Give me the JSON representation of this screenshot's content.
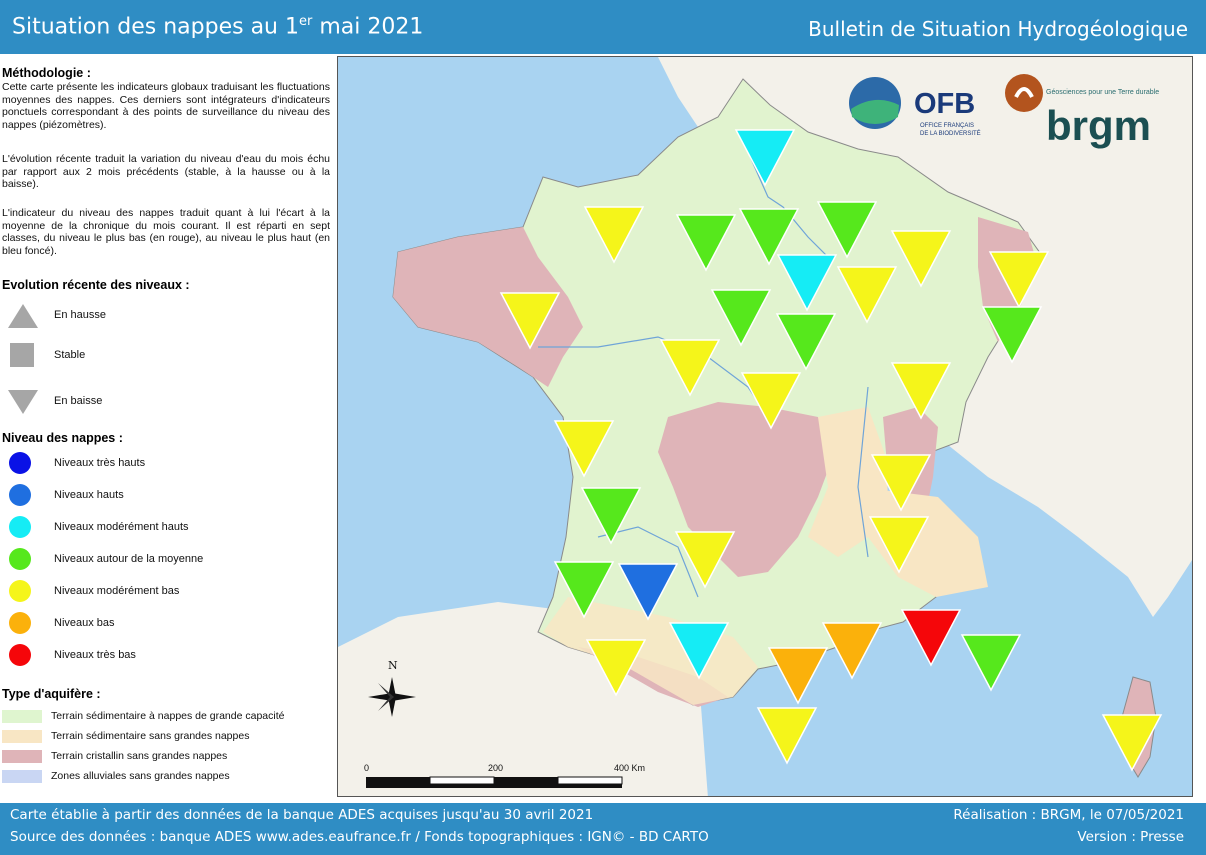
{
  "header": {
    "title_main": "Situation des nappes au 1",
    "title_sup": "er",
    "title_end": " mai 2021",
    "subtitle": "Bulletin de Situation Hydrogéologique"
  },
  "methodology": {
    "title": "Méthodologie :",
    "p1": "Cette carte présente les indicateurs globaux traduisant les fluctuations moyennes des nappes. Ces derniers sont intégrateurs d'indicateurs ponctuels correspondant à des points de surveillance du niveau des nappes (piézomètres).",
    "p2": "L'évolution récente traduit la variation du niveau d'eau du mois échu par rapport aux 2 mois précédents (stable, à la hausse ou à la baisse).",
    "p3": "L'indicateur du niveau des nappes traduit quant à lui l'écart à la moyenne de la chronique du mois courant. Il est réparti en sept classes, du niveau le plus bas (en rouge), au niveau le plus haut (en bleu foncé)."
  },
  "evolution": {
    "title": "Evolution récente des niveaux :",
    "items": [
      {
        "label": "En hausse",
        "shape": "up"
      },
      {
        "label": "Stable",
        "shape": "square"
      },
      {
        "label": "En baisse",
        "shape": "down"
      }
    ]
  },
  "levels": {
    "title": "Niveau des nappes :",
    "items": [
      {
        "label": "Niveaux très hauts",
        "color": "#0a12e6"
      },
      {
        "label": "Niveaux hauts",
        "color": "#1f6fe0"
      },
      {
        "label": "Niveaux modérément hauts",
        "color": "#15ecf5"
      },
      {
        "label": "Niveaux autour de la moyenne",
        "color": "#56e81c"
      },
      {
        "label": "Niveaux modérément bas",
        "color": "#f5f51a"
      },
      {
        "label": "Niveaux bas",
        "color": "#fbb10b"
      },
      {
        "label": "Niveaux très bas",
        "color": "#f5060a"
      }
    ]
  },
  "aquifer": {
    "title": "Type d'aquifère :",
    "items": [
      {
        "label": "Terrain sédimentaire à nappes de grande capacité",
        "color": "#dff5cf"
      },
      {
        "label": "Terrain sédimentaire sans grandes nappes",
        "color": "#f8e6c4"
      },
      {
        "label": "Terrain cristallin sans grandes nappes",
        "color": "#dfb4b8"
      },
      {
        "label": "Zones alluviales sans grandes nappes",
        "color": "#c9d6f3"
      }
    ]
  },
  "map": {
    "north": "N",
    "scale": {
      "t0": "0",
      "t1": "200",
      "t2": "400 Km"
    },
    "logos": {
      "ofb": "OFB",
      "ofb_sub1": "OFFICE FRANÇAIS",
      "ofb_sub2": "DE LA BIODIVERSITÉ",
      "brgm": "brgm",
      "brgm_tag": "Géosciences pour une Terre durable"
    },
    "indicators": [
      {
        "level": "modérément hauts",
        "trend": "baisse"
      },
      {
        "level": "modérément bas",
        "trend": "baisse"
      },
      {
        "level": "autour de la moyenne",
        "trend": "baisse"
      },
      {
        "level": "autour de la moyenne",
        "trend": "baisse"
      },
      {
        "level": "autour de la moyenne",
        "trend": "baisse"
      },
      {
        "level": "modérément bas",
        "trend": "baisse"
      },
      {
        "level": "modérément bas",
        "trend": "baisse"
      },
      {
        "level": "modérément hauts",
        "trend": "baisse"
      },
      {
        "level": "modérément bas",
        "trend": "baisse"
      },
      {
        "level": "modérément bas",
        "trend": "baisse"
      },
      {
        "level": "autour de la moyenne",
        "trend": "baisse"
      },
      {
        "level": "autour de la moyenne",
        "trend": "baisse"
      },
      {
        "level": "autour de la moyenne",
        "trend": "baisse"
      },
      {
        "level": "modérément bas",
        "trend": "baisse"
      },
      {
        "level": "modérément bas",
        "trend": "baisse"
      },
      {
        "level": "modérément bas",
        "trend": "baisse"
      },
      {
        "level": "modérément bas",
        "trend": "baisse"
      },
      {
        "level": "modérément bas",
        "trend": "baisse"
      },
      {
        "level": "autour de la moyenne",
        "trend": "baisse"
      },
      {
        "level": "modérément bas",
        "trend": "baisse"
      },
      {
        "level": "modérément bas",
        "trend": "baisse"
      },
      {
        "level": "autour de la moyenne",
        "trend": "baisse"
      },
      {
        "level": "hauts",
        "trend": "baisse"
      },
      {
        "level": "modérément bas",
        "trend": "baisse"
      },
      {
        "level": "modérément hauts",
        "trend": "baisse"
      },
      {
        "level": "bas",
        "trend": "baisse"
      },
      {
        "level": "bas",
        "trend": "baisse"
      },
      {
        "level": "très bas",
        "trend": "baisse"
      },
      {
        "level": "autour de la moyenne",
        "trend": "baisse"
      },
      {
        "level": "modérément bas",
        "trend": "baisse"
      },
      {
        "level": "modérément bas",
        "trend": "baisse"
      }
    ]
  },
  "footer": {
    "line1": "Carte établie à partir des données de la banque ADES acquises jusqu'au 30 avril 2021",
    "line2": "Source des données : banque ADES www.ades.eaufrance.fr / Fonds topographiques : IGN© - BD CARTO",
    "right1": "Réalisation : BRGM, le 07/05/2021",
    "right2": "Version : Presse"
  }
}
